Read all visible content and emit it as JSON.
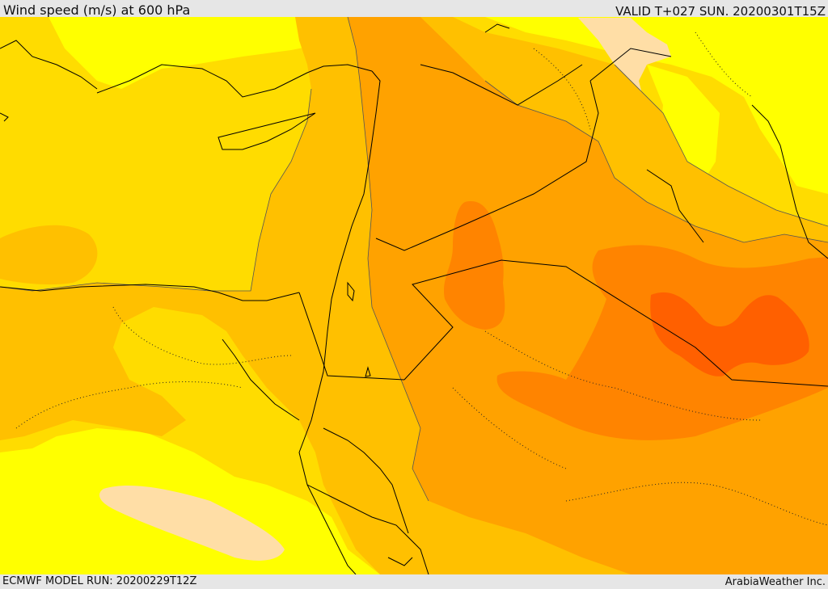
{
  "header": {
    "title": "Wind speed (m/s) at 600 hPa",
    "valid": "VALID T+027 SUN. 20200301T15Z"
  },
  "footer": {
    "model_run": "ECMWF MODEL RUN: 20200229T12Z",
    "credit": "ArabiaWeather Inc."
  },
  "palette": {
    "lightest": "#ffdea6",
    "yellow": "#ffff00",
    "gold": "#ffdc00",
    "amber": "#ffc000",
    "orange": "#ffa200",
    "dark_orange": "#ff8400",
    "red_orange": "#ff6000",
    "boundary": "#000000"
  }
}
